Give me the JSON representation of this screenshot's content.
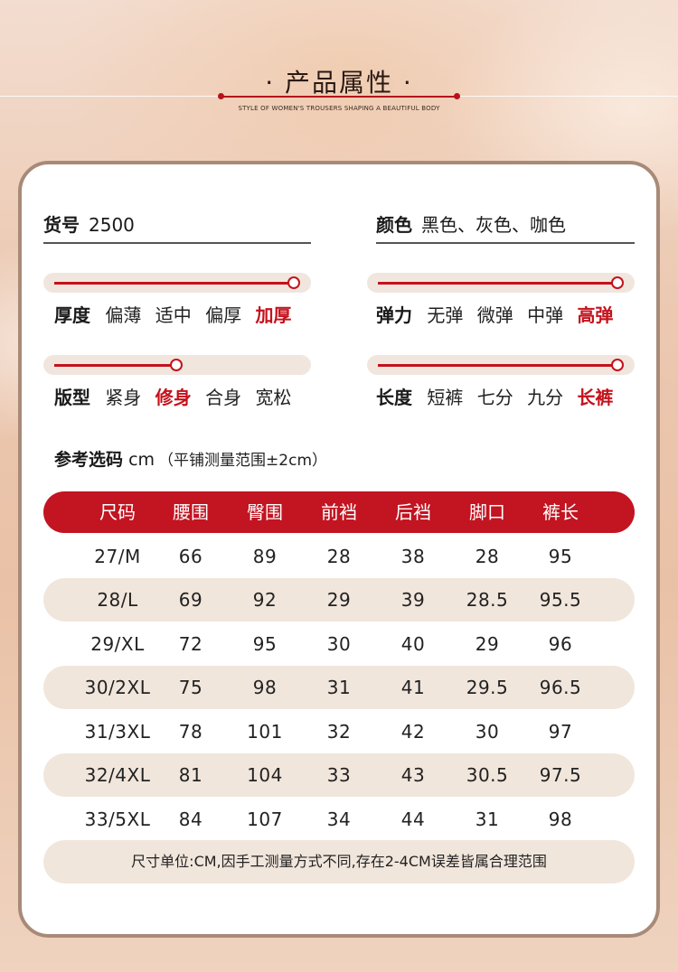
{
  "header": {
    "title": "· 产品属性 ·",
    "subtitle": "STYLE OF WOMEN'S TROUSERS SHAPING A BEAUTIFUL BODY"
  },
  "info": {
    "item_no": {
      "label": "货号",
      "value": "2500"
    },
    "color": {
      "label": "颜色",
      "value": "黑色、灰色、咖色"
    }
  },
  "attributes": {
    "thickness": {
      "label": "厚度",
      "options": [
        "偏薄",
        "适中",
        "偏厚",
        "加厚"
      ],
      "selected_index": 3,
      "level": 1.0
    },
    "elasticity": {
      "label": "弹力",
      "options": [
        "无弹",
        "微弹",
        "中弹",
        "高弹"
      ],
      "selected_index": 3,
      "level": 1.0
    },
    "fit": {
      "label": "版型",
      "options": [
        "紧身",
        "修身",
        "合身",
        "宽松"
      ],
      "selected_index": 1,
      "level": 0.5
    },
    "length": {
      "label": "长度",
      "options": [
        "短裤",
        "七分",
        "九分",
        "长裤"
      ],
      "selected_index": 3,
      "level": 1.0
    }
  },
  "size_reference": {
    "label": "参考选码",
    "unit": "cm",
    "note": "（平铺测量范围±2cm）"
  },
  "size_table": {
    "columns": [
      "尺码",
      "腰围",
      "臀围",
      "前裆",
      "后裆",
      "脚口",
      "裤长"
    ],
    "rows": [
      [
        "27/M",
        "66",
        "89",
        "28",
        "38",
        "28",
        "95"
      ],
      [
        "28/L",
        "69",
        "92",
        "29",
        "39",
        "28.5",
        "95.5"
      ],
      [
        "29/XL",
        "72",
        "95",
        "30",
        "40",
        "29",
        "96"
      ],
      [
        "30/2XL",
        "75",
        "98",
        "31",
        "41",
        "29.5",
        "96.5"
      ],
      [
        "31/3XL",
        "78",
        "101",
        "32",
        "42",
        "30",
        "97"
      ],
      [
        "32/4XL",
        "81",
        "104",
        "33",
        "43",
        "30.5",
        "97.5"
      ],
      [
        "33/5XL",
        "84",
        "107",
        "34",
        "44",
        "31",
        "98"
      ]
    ]
  },
  "footnote": "尺寸单位:CM,因手工测量方式不同,存在2-4CM误差皆属合理范围",
  "colors": {
    "accent": "#c21421",
    "row_alt": "#f1e6dc",
    "card_border": "#a88a78"
  }
}
